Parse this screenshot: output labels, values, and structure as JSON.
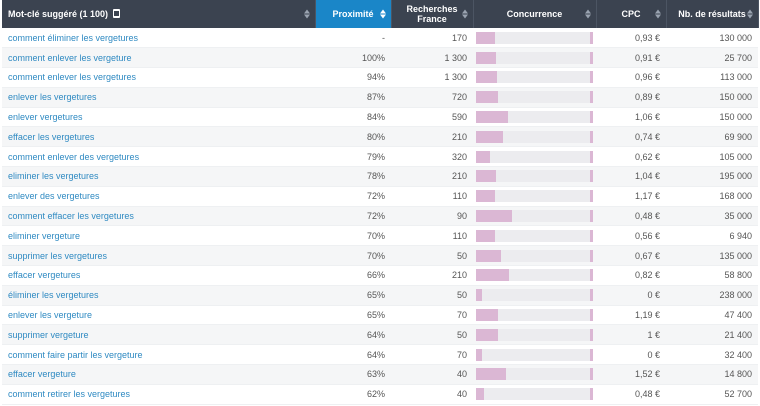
{
  "header": {
    "keyword": "Mot-clé suggéré (1 100)",
    "proximity": "Proximité",
    "searches_line1": "Recherches",
    "searches_line2": "France",
    "competition": "Concurrence",
    "cpc": "CPC",
    "results": "Nb. de résultats"
  },
  "icons": {
    "export": "document-icon",
    "sort": "sort-arrows-icon"
  },
  "colors": {
    "header_bg": "#3b4350",
    "active_header": "#1a86c8",
    "link": "#2f8ac2",
    "bar_fill": "#dbb7d4",
    "bar_track": "#ececef"
  },
  "rows": [
    {
      "keyword": "comment éliminer les vergetures",
      "proximity": "-",
      "searches": "170",
      "competition": 0.16,
      "cpc": "0,93 €",
      "results": "130 000"
    },
    {
      "keyword": "comment enlever les vergeture",
      "proximity": "100%",
      "searches": "1 300",
      "competition": 0.17,
      "cpc": "0,91 €",
      "results": "25 700"
    },
    {
      "keyword": "comment enlever les vergetures",
      "proximity": "94%",
      "searches": "1 300",
      "competition": 0.18,
      "cpc": "0,96 €",
      "results": "113 000"
    },
    {
      "keyword": "enlever les vergetures",
      "proximity": "87%",
      "searches": "720",
      "competition": 0.19,
      "cpc": "0,89 €",
      "results": "150 000"
    },
    {
      "keyword": "enlever vergetures",
      "proximity": "84%",
      "searches": "590",
      "competition": 0.27,
      "cpc": "1,06 €",
      "results": "150 000"
    },
    {
      "keyword": "effacer les vergetures",
      "proximity": "80%",
      "searches": "210",
      "competition": 0.23,
      "cpc": "0,74 €",
      "results": "69 900"
    },
    {
      "keyword": "comment enlever des vergetures",
      "proximity": "79%",
      "searches": "320",
      "competition": 0.12,
      "cpc": "0,62 €",
      "results": "105 000"
    },
    {
      "keyword": "eliminer les vergetures",
      "proximity": "78%",
      "searches": "210",
      "competition": 0.17,
      "cpc": "1,04 €",
      "results": "195 000"
    },
    {
      "keyword": "enlever des vergetures",
      "proximity": "72%",
      "searches": "110",
      "competition": 0.16,
      "cpc": "1,17 €",
      "results": "168 000"
    },
    {
      "keyword": "comment effacer les vergetures",
      "proximity": "72%",
      "searches": "90",
      "competition": 0.31,
      "cpc": "0,48 €",
      "results": "35 000"
    },
    {
      "keyword": "eliminer vergeture",
      "proximity": "70%",
      "searches": "110",
      "competition": 0.16,
      "cpc": "0,56 €",
      "results": "6 940"
    },
    {
      "keyword": "supprimer les vergetures",
      "proximity": "70%",
      "searches": "50",
      "competition": 0.21,
      "cpc": "0,67 €",
      "results": "135 000"
    },
    {
      "keyword": "effacer vergetures",
      "proximity": "66%",
      "searches": "210",
      "competition": 0.28,
      "cpc": "0,82 €",
      "results": "58 800"
    },
    {
      "keyword": "éliminer les vergetures",
      "proximity": "65%",
      "searches": "50",
      "competition": 0.05,
      "cpc": "0 €",
      "results": "238 000"
    },
    {
      "keyword": "enlever les vergeture",
      "proximity": "65%",
      "searches": "70",
      "competition": 0.19,
      "cpc": "1,19 €",
      "results": "47 400"
    },
    {
      "keyword": "supprimer vergeture",
      "proximity": "64%",
      "searches": "50",
      "competition": 0.19,
      "cpc": "1 €",
      "results": "21 400"
    },
    {
      "keyword": "comment faire partir les vergeture",
      "proximity": "64%",
      "searches": "70",
      "competition": 0.05,
      "cpc": "0 €",
      "results": "32 400"
    },
    {
      "keyword": "effacer vergeture",
      "proximity": "63%",
      "searches": "40",
      "competition": 0.26,
      "cpc": "1,52 €",
      "results": "14 800"
    },
    {
      "keyword": "comment retirer les vergetures",
      "proximity": "62%",
      "searches": "40",
      "competition": 0.07,
      "cpc": "0,48 €",
      "results": "52 700"
    }
  ]
}
